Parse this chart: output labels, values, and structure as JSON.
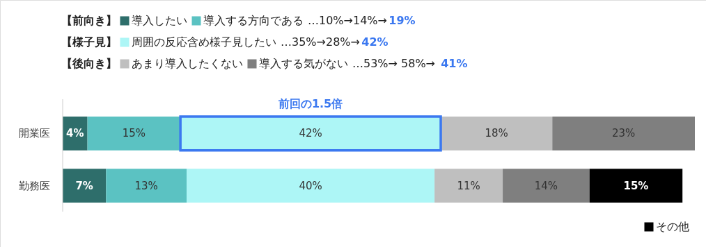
{
  "chart_data": {
    "type": "bar",
    "orientation": "horizontal",
    "stacked": true,
    "legend": "top",
    "categories": [
      "開業医",
      "勤務医"
    ],
    "series": [
      {
        "name": "導入したい",
        "color": "#2e6e6b",
        "values": [
          4,
          7
        ],
        "value_labels": [
          "4%",
          "7%"
        ]
      },
      {
        "name": "導入する方向である",
        "color": "#5bc2c2",
        "values": [
          15,
          13
        ],
        "value_labels": [
          "15%",
          "13%"
        ]
      },
      {
        "name": "周囲の反応含め様子見したい",
        "color": "#adf6f6",
        "values": [
          42,
          40
        ],
        "value_labels": [
          "42%",
          "40%"
        ]
      },
      {
        "name": "あまり導入したくない",
        "color": "#bfbfbf",
        "values": [
          18,
          11
        ],
        "value_labels": [
          "18%",
          "11%"
        ]
      },
      {
        "name": "導入する気がない",
        "color": "#7f7f7f",
        "values": [
          23,
          14
        ],
        "value_labels": [
          "23%",
          "14%"
        ]
      },
      {
        "name": "その他",
        "color": "#000000",
        "values": [
          null,
          15
        ],
        "value_labels": [
          null,
          "15%"
        ]
      }
    ],
    "annotations": [
      "【前向き】",
      "【様子見】",
      "【後向き】",
      "…10%→14%→",
      "…35%→28%→",
      "…53%→ 58%→",
      "19%",
      "42%",
      "41%",
      "前回の1.5倍"
    ]
  }
}
